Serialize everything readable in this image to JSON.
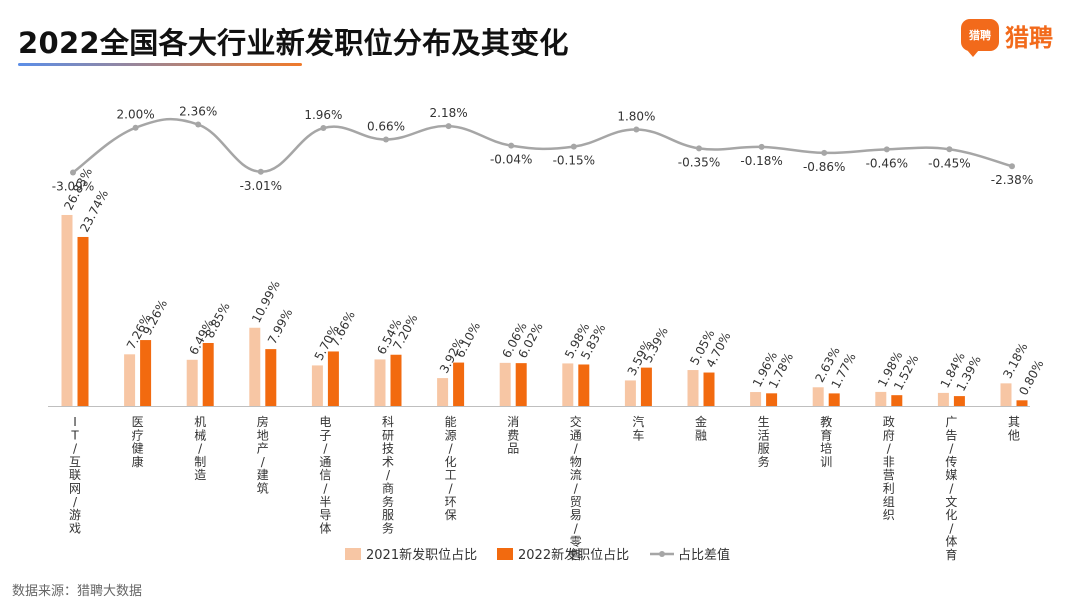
{
  "title": "2022全国各大行业新发职位分布及其变化",
  "logo": {
    "mark": "猎聘",
    "text": "猎聘"
  },
  "source": "数据来源：猎聘大数据",
  "colors": {
    "series2021": "#f7c6a4",
    "series2022": "#f26a0f",
    "diff": "#a6a6a6",
    "axis": "#bfbfbf",
    "label": "#333333"
  },
  "chart_data": {
    "type": "bar",
    "categories": [
      "IT/互联网/游戏",
      "医疗健康",
      "机械/制造",
      "房地产/建筑",
      "电子/通信/半导体",
      "科研技术/商务服务",
      "能源/化工/环保",
      "消费品",
      "交通/物流/贸易/零售",
      "汽车",
      "金融",
      "生活服务",
      "教育培训",
      "政府/非营利组织",
      "广告/传媒/文化/体育",
      "其他"
    ],
    "series": [
      {
        "name": "2021新发职位占比",
        "values": [
          26.83,
          7.26,
          6.49,
          10.99,
          5.7,
          6.54,
          3.92,
          6.06,
          5.98,
          3.59,
          5.05,
          1.96,
          2.63,
          1.98,
          1.84,
          3.18
        ],
        "labels": [
          "26.83%",
          "7.26%",
          "6.49%",
          "10.99%",
          "5.70%",
          "6.54%",
          "3.92%",
          "6.06%",
          "5.98%",
          "3.59%",
          "5.05%",
          "1.96%",
          "2.63%",
          "1.98%",
          "1.84%",
          "3.18%"
        ]
      },
      {
        "name": "2022新发职位占比",
        "values": [
          23.74,
          9.26,
          8.85,
          7.99,
          7.66,
          7.2,
          6.1,
          6.02,
          5.83,
          5.39,
          4.7,
          1.78,
          1.77,
          1.52,
          1.39,
          0.8
        ],
        "labels": [
          "23.74%",
          "9.26%",
          "8.85%",
          "7.99%",
          "7.66%",
          "7.20%",
          "6.10%",
          "6.02%",
          "5.83%",
          "5.39%",
          "4.70%",
          "1.78%",
          "1.77%",
          "1.52%",
          "1.39%",
          "0.80%"
        ]
      },
      {
        "name": "占比差值",
        "type": "line",
        "values": [
          -3.09,
          2.0,
          2.36,
          -3.01,
          1.96,
          0.66,
          2.18,
          -0.04,
          -0.15,
          1.8,
          -0.35,
          -0.18,
          -0.86,
          -0.46,
          -0.45,
          -2.38
        ],
        "labels": [
          "-3.09%",
          "2.00%",
          "2.36%",
          "-3.01%",
          "1.96%",
          "0.66%",
          "2.18%",
          "-0.04%",
          "-0.15%",
          "1.80%",
          "-0.35%",
          "-0.18%",
          "-0.86%",
          "-0.46%",
          "-0.45%",
          "-2.38%"
        ]
      }
    ],
    "legend": [
      "2021新发职位占比",
      "2022新发职位占比",
      "占比差值"
    ],
    "legend_position": "bottom"
  }
}
